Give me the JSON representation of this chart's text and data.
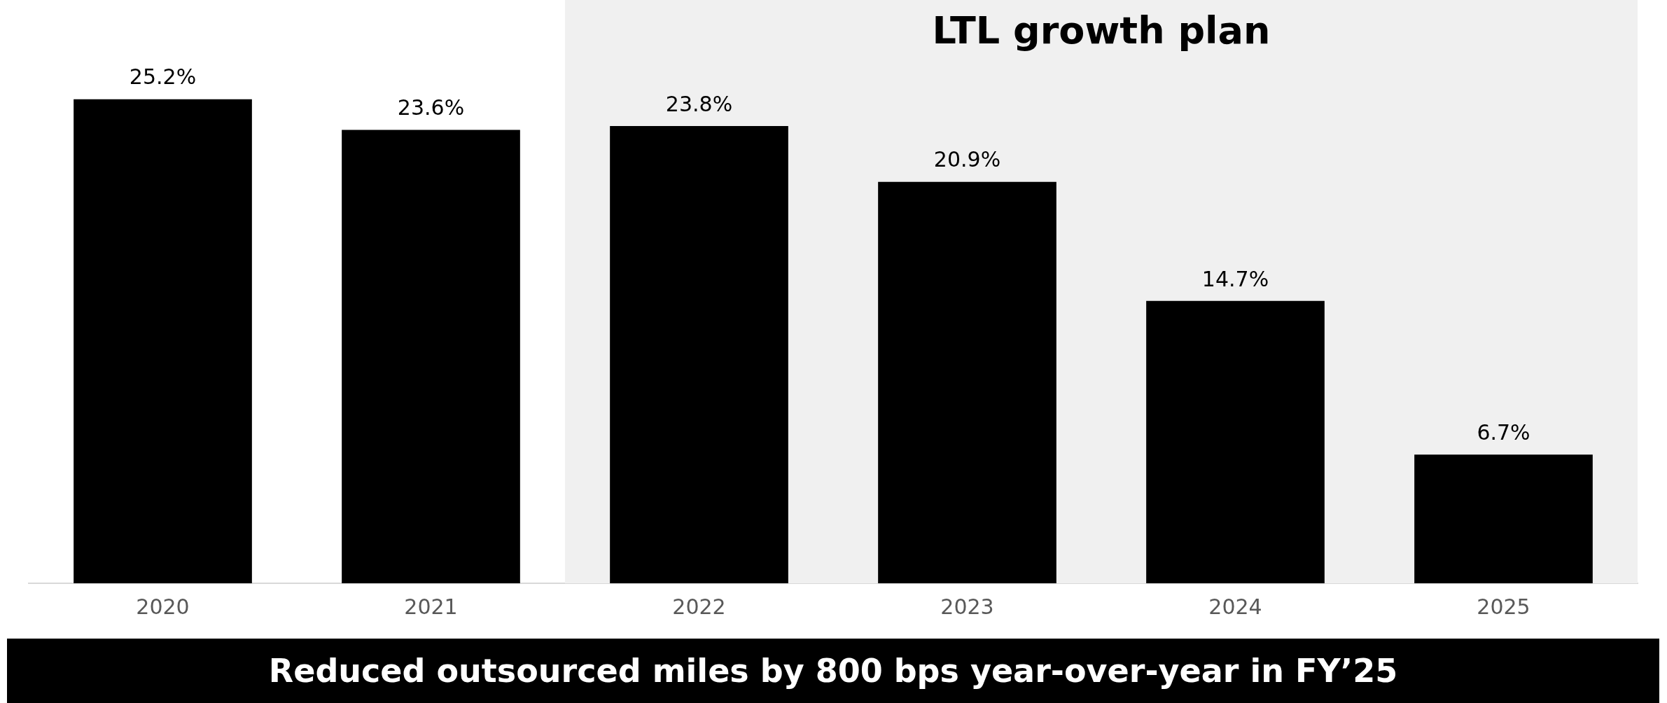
{
  "chart_data": {
    "type": "bar",
    "categories": [
      "2020",
      "2021",
      "2022",
      "2023",
      "2024",
      "2025"
    ],
    "values": [
      25.2,
      23.6,
      23.8,
      20.9,
      14.7,
      6.7
    ],
    "color": "#000000",
    "data_labels": true,
    "value_labels": [
      "25.2%",
      "23.6%",
      "23.8%",
      "20.9%",
      "14.7%",
      "6.7%"
    ],
    "bands": [
      {
        "axis": "x",
        "from": "2022",
        "to": "2025",
        "label": "LTL growth plan",
        "color": "#f0f0f0"
      }
    ],
    "annotations": [
      "Reduced outsourced miles by 800 bps year-over-year in FY’25"
    ],
    "grid": false,
    "legend": false,
    "tick_labels": "x"
  }
}
